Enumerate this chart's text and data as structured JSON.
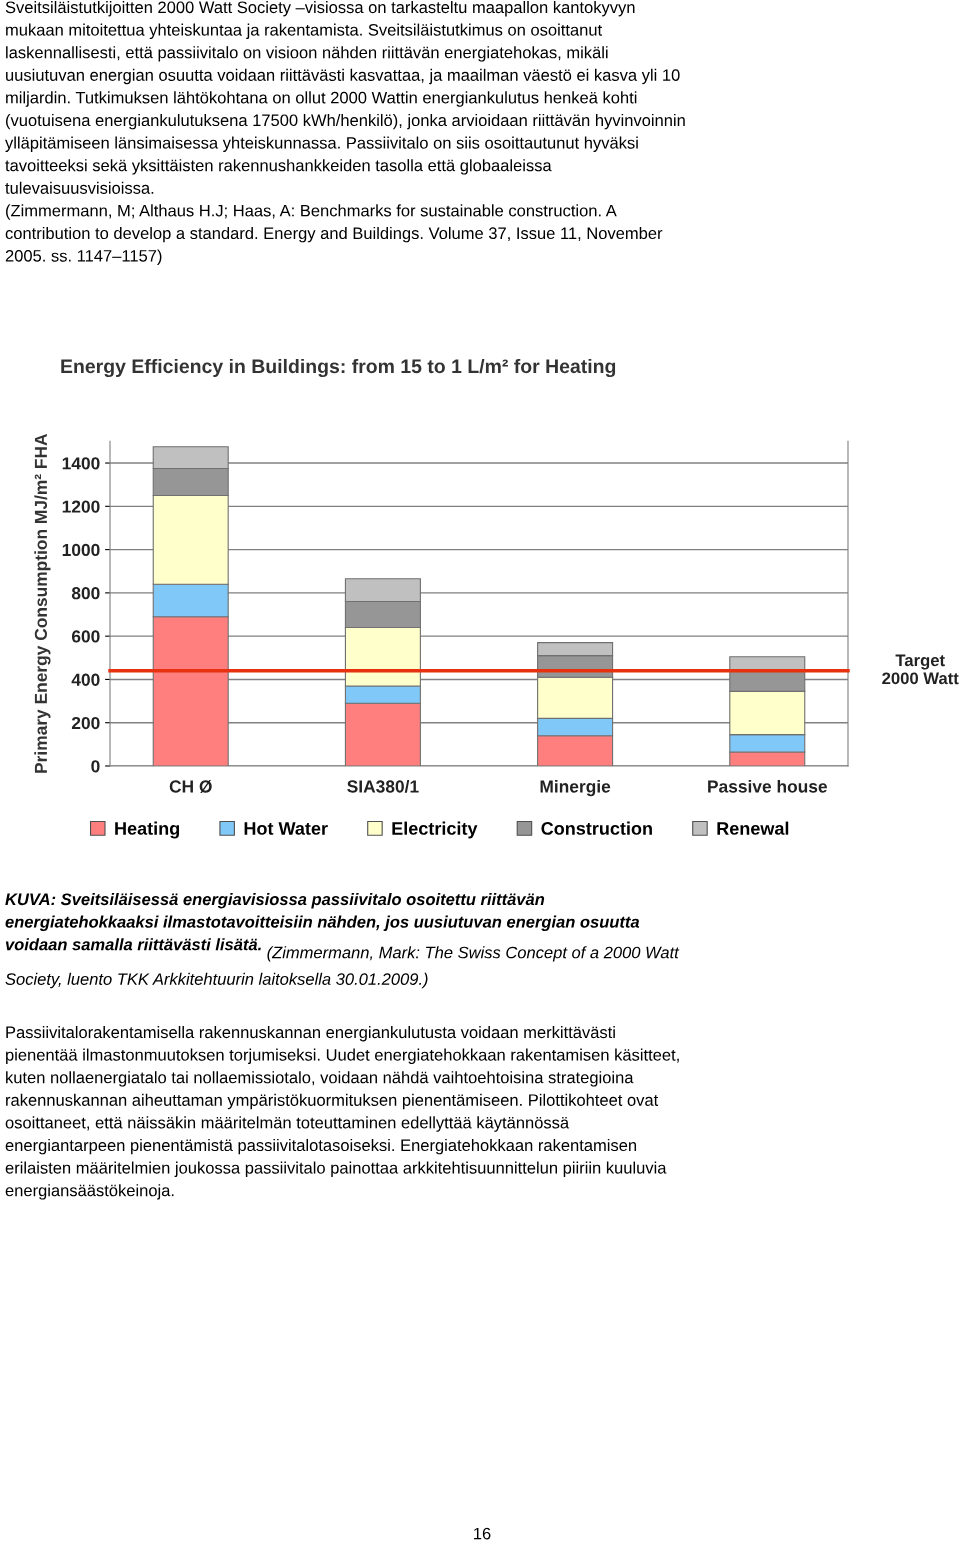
{
  "chart_data": {
    "type": "bar",
    "stacked": true,
    "title": "Energy Efficiency in Buildings: from 15 to 1 L/m² for Heating",
    "ylabel": "Primary Energy Consumption MJ/m² FHA",
    "categories": [
      "CH Ø",
      "SIA380/1",
      "Minergie",
      "Passive house"
    ],
    "series": [
      {
        "name": "Heating",
        "color": "#ff7f7f",
        "values": [
          690,
          290,
          140,
          65
        ]
      },
      {
        "name": "Hot Water",
        "color": "#7fc8f8",
        "values": [
          150,
          80,
          80,
          80
        ]
      },
      {
        "name": "Electricity",
        "color": "#ffffcc",
        "values": [
          410,
          270,
          190,
          200
        ]
      },
      {
        "name": "Construction",
        "color": "#969696",
        "values": [
          125,
          120,
          100,
          100
        ]
      },
      {
        "name": "Renewal",
        "color": "#c0c0c0",
        "values": [
          100,
          105,
          60,
          60
        ]
      }
    ],
    "ylim": [
      0,
      1500
    ],
    "yticks": [
      0,
      200,
      400,
      600,
      800,
      1000,
      1200,
      1400
    ],
    "grid": "y",
    "legend": "bottom",
    "ref_lines": [
      {
        "axis": "y",
        "value": 440,
        "label": "Target\n2000 Watt",
        "color": "#e8320f"
      }
    ],
    "annotations": [
      "Sveitsiläistutkijoitten 2000 Watt Society –visiossa on tarkasteltu maapallon kantokyvyn\nmukaan mitoitettua yhteiskuntaa ja rakentamista. Sveitsiläistutkimus on osoittanut\nlaskennallisesti, että passiivitalo on visioon nähden riittävän energiatehokas, mikäli\nuusiutuvan energian osuutta voidaan riittävästi kasvattaa, ja maailman väestö ei kasva yli 10\nmiljardin. Tutkimuksen lähtökohtana on ollut 2000 Wattin energiankulutus henkeä kohti\n(vuotuisena energiankulutuksena 17500 kWh/henkilö), jonka arvioidaan riittävän hyvinvoinnin\nylläpitämiseen länsimaisessa yhteiskunnassa. Passiivitalo on siis osoittautunut hyväksi\ntavoitteeksi sekä yksittäisten rakennushankkeiden tasolla että globaaleissa\ntulevaisuusvisioissa.\n(Zimmermann, M; Althaus H.J; Haas, A: Benchmarks for sustainable construction. A\ncontribution to develop a standard. Energy and Buildings. Volume 37, Issue 11, November\n2005. ss. 1147–1157)",
      "KUVA: Sveitsiläisessä energiavisiossa passiivitalo osoitettu riittävän\nenergiatehokkaaksi ilmastotavoitteisiin nähden, jos uusiutuvan energian osuutta\nvoidaan samalla riittävästi lisätä.",
      "(Zimmermann, Mark: The Swiss Concept of a 2000 Watt\nSociety, luento TKK Arkkitehtuurin laitoksella 30.01.2009.)",
      "Passiivitalorakentamisella rakennuskannan energiankulutusta voidaan merkittävästi\npienentää ilmastonmuutoksen torjumiseksi. Uudet energiatehokkaan rakentamisen käsitteet,\nkuten nollaenergiatalo tai nollaemissiotalo, voidaan nähdä vaihtoehtoisina strategioina\nrakennuskannan aiheuttaman ympäristökuormituksen pienentämiseen. Pilottikohteet ovat\nosoittaneet, että näissäkin määritelmän toteuttaminen edellyttää käytännössä\nenergiantarpeen pienentämistä passiivitalotasoiseksi. Energiatehokkaan rakentamisen\nerilaisten määritelmien joukossa passiivitalo painottaa arkkitehtisuunnittelun piiriin kuuluvia\nenergiansäästökeinoja.",
      "16"
    ]
  }
}
